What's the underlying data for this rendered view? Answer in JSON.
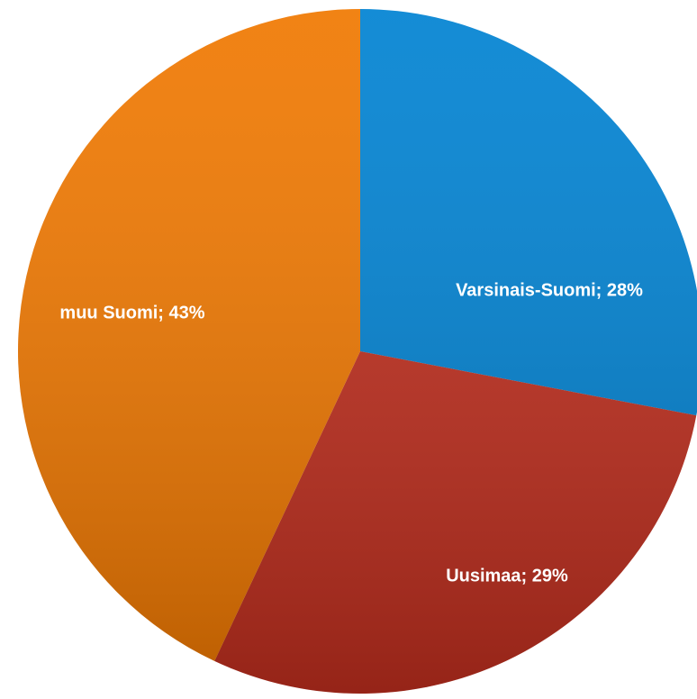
{
  "chart_data": {
    "type": "pie",
    "values": [
      28,
      29,
      43
    ],
    "value_labels": [
      "Varsinais-Suomi; 28%",
      "Uusimaa; 29%",
      "muu Suomi; 43%"
    ],
    "colors": [
      "#0082d2",
      "#c02e1e",
      "#f07800"
    ]
  }
}
